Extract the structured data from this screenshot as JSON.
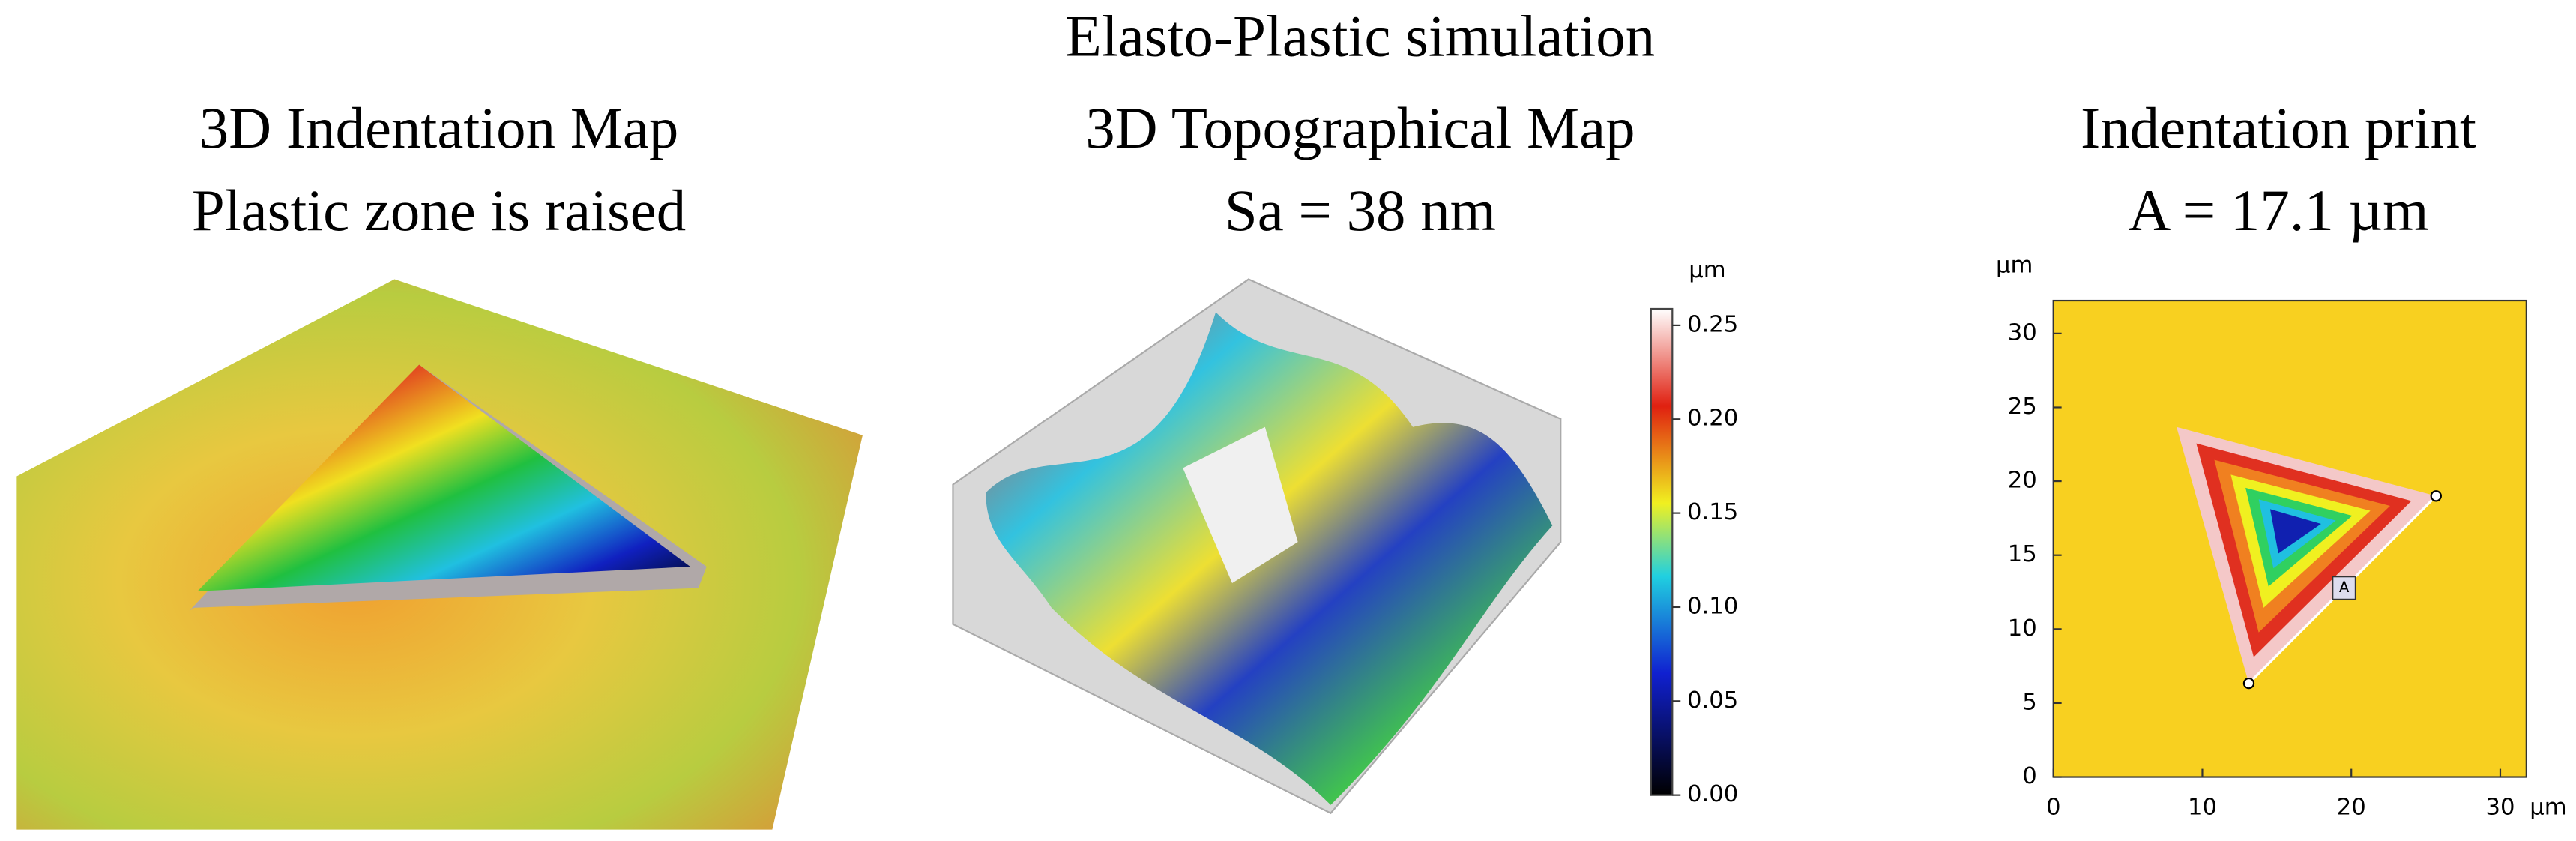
{
  "panels": [
    {
      "title": [
        "3D Indentation Map",
        "Plastic zone is raised"
      ]
    },
    {
      "title": [
        "Elasto-Plastic simulation",
        "3D Topographical Map",
        "Sa = 38 nm"
      ],
      "colorbar": {
        "unit": "µm",
        "ticks": [
          "0.00",
          "0.05",
          "0.10",
          "0.15",
          "0.20",
          "0.25"
        ]
      }
    },
    {
      "title": [
        "Indentation print",
        "A = 17.1 µm"
      ],
      "y_unit": "µm",
      "x_unit": "µm",
      "yticks": [
        "0",
        "5",
        "10",
        "15",
        "20",
        "25",
        "30"
      ],
      "xticks": [
        "0",
        "10",
        "20",
        "30"
      ],
      "marker": "A"
    }
  ]
}
